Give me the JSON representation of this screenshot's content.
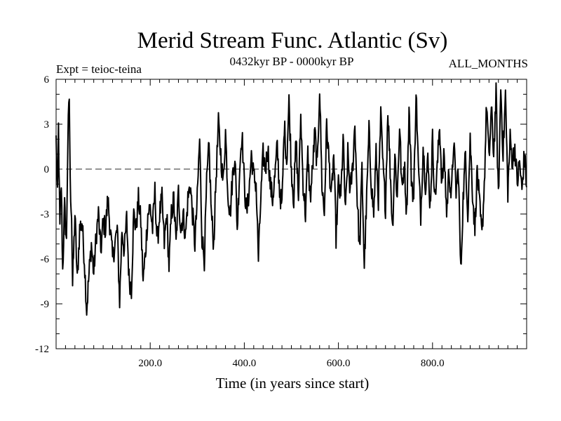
{
  "chart_data": {
    "type": "line",
    "title": "Merid Stream Func. Atlantic (Sv)",
    "subtitle_left": "Expt = teioc-teina",
    "subtitle_center": "0432kyr BP - 0000kyr BP",
    "subtitle_right": "ALL_MONTHS",
    "xlabel": "Time (in years since start)",
    "ylabel": "",
    "xlim": [
      0,
      1000
    ],
    "ylim": [
      -12,
      6
    ],
    "x_ticks": [
      200,
      400,
      600,
      800
    ],
    "x_tick_labels": [
      "200.0",
      "400.0",
      "600.0",
      "800.0"
    ],
    "y_ticks": [
      -12,
      -9,
      -6,
      -3,
      0,
      3,
      6
    ],
    "y_tick_labels": [
      "-12",
      "-9",
      "-6",
      "-3",
      "0",
      "3",
      "6"
    ],
    "zero_line": true,
    "grid": false,
    "x_start": 1,
    "x_step": 1,
    "anchors": [
      [
        0,
        2
      ],
      [
        3,
        -2
      ],
      [
        5,
        2.8
      ],
      [
        8,
        -4
      ],
      [
        11,
        -1
      ],
      [
        14,
        -6.8
      ],
      [
        18,
        -2.5
      ],
      [
        22,
        -5
      ],
      [
        25,
        2
      ],
      [
        28,
        4.8
      ],
      [
        30,
        -1
      ],
      [
        33,
        -3
      ],
      [
        35,
        -7.8
      ],
      [
        40,
        -3
      ],
      [
        45,
        -7.5
      ],
      [
        50,
        -4
      ],
      [
        55,
        -3.5
      ],
      [
        60,
        -6
      ],
      [
        65,
        -9.4
      ],
      [
        70,
        -7
      ],
      [
        75,
        -5
      ],
      [
        80,
        -7
      ],
      [
        85,
        -4.5
      ],
      [
        90,
        -3
      ],
      [
        95,
        -5.5
      ],
      [
        100,
        -3.5
      ],
      [
        105,
        -4
      ],
      [
        110,
        -2
      ],
      [
        115,
        -4
      ],
      [
        120,
        -6
      ],
      [
        125,
        -5
      ],
      [
        130,
        -4
      ],
      [
        135,
        -8.8
      ],
      [
        140,
        -4
      ],
      [
        145,
        -5.5
      ],
      [
        150,
        -3.3
      ],
      [
        155,
        -7.3
      ],
      [
        160,
        -8
      ],
      [
        165,
        -3
      ],
      [
        170,
        -4
      ],
      [
        175,
        -2
      ],
      [
        180,
        -3.5
      ],
      [
        185,
        -7.5
      ],
      [
        190,
        -5.5
      ],
      [
        195,
        -3
      ],
      [
        200,
        -2.5
      ],
      [
        205,
        -4
      ],
      [
        210,
        -1.5
      ],
      [
        215,
        -5
      ],
      [
        220,
        -3
      ],
      [
        225,
        -2
      ],
      [
        230,
        -5
      ],
      [
        235,
        -3
      ],
      [
        240,
        -6.5
      ],
      [
        245,
        -3
      ],
      [
        250,
        -2
      ],
      [
        255,
        -5
      ],
      [
        260,
        -1.5
      ],
      [
        265,
        -4
      ],
      [
        270,
        -3
      ],
      [
        275,
        -4.5
      ],
      [
        280,
        -2
      ],
      [
        285,
        -1
      ],
      [
        290,
        -3
      ],
      [
        295,
        -5
      ],
      [
        300,
        -2
      ],
      [
        305,
        2
      ],
      [
        310,
        -4.5
      ],
      [
        315,
        -6
      ],
      [
        320,
        -1
      ],
      [
        325,
        1.5
      ],
      [
        330,
        -3
      ],
      [
        335,
        -5
      ],
      [
        340,
        -0.5
      ],
      [
        345,
        3
      ],
      [
        350,
        1
      ],
      [
        355,
        -1
      ],
      [
        360,
        2.5
      ],
      [
        365,
        -1.5
      ],
      [
        370,
        -3
      ],
      [
        375,
        -0.5
      ],
      [
        380,
        1
      ],
      [
        385,
        -4
      ],
      [
        390,
        0
      ],
      [
        395,
        2.5
      ],
      [
        400,
        -1
      ],
      [
        405,
        -3
      ],
      [
        410,
        -1.5
      ],
      [
        415,
        1
      ],
      [
        420,
        -0.5
      ],
      [
        425,
        -1
      ],
      [
        430,
        -6
      ],
      [
        435,
        -2
      ],
      [
        440,
        1
      ],
      [
        445,
        0
      ],
      [
        450,
        1.5
      ],
      [
        455,
        -1
      ],
      [
        460,
        -2
      ],
      [
        465,
        -0.5
      ],
      [
        470,
        1.5
      ],
      [
        475,
        -1.5
      ],
      [
        480,
        -2.5
      ],
      [
        485,
        3
      ],
      [
        490,
        0.5
      ],
      [
        495,
        4.5
      ],
      [
        500,
        0
      ],
      [
        505,
        -2
      ],
      [
        510,
        2
      ],
      [
        515,
        -2
      ],
      [
        520,
        3.5
      ],
      [
        525,
        -1
      ],
      [
        530,
        -3
      ],
      [
        535,
        1
      ],
      [
        540,
        -2
      ],
      [
        545,
        0
      ],
      [
        550,
        2.5
      ],
      [
        555,
        0
      ],
      [
        560,
        5.5
      ],
      [
        565,
        -1
      ],
      [
        570,
        -3
      ],
      [
        575,
        3
      ],
      [
        580,
        0.5
      ],
      [
        585,
        -2
      ],
      [
        590,
        1
      ],
      [
        595,
        -4.5
      ],
      [
        600,
        -1
      ],
      [
        605,
        -2
      ],
      [
        610,
        2
      ],
      [
        615,
        -3
      ],
      [
        620,
        1
      ],
      [
        625,
        -1.5
      ],
      [
        630,
        0
      ],
      [
        635,
        3
      ],
      [
        640,
        -2
      ],
      [
        645,
        -5.5
      ],
      [
        650,
        0
      ],
      [
        655,
        -6.5
      ],
      [
        660,
        -2
      ],
      [
        665,
        2.5
      ],
      [
        670,
        -1
      ],
      [
        675,
        -3
      ],
      [
        680,
        1
      ],
      [
        685,
        -2
      ],
      [
        690,
        3.5
      ],
      [
        695,
        0
      ],
      [
        700,
        -2.5
      ],
      [
        705,
        4
      ],
      [
        710,
        0
      ],
      [
        715,
        -4
      ],
      [
        720,
        1
      ],
      [
        725,
        -2
      ],
      [
        730,
        3
      ],
      [
        735,
        -1.5
      ],
      [
        740,
        0.5
      ],
      [
        745,
        -3
      ],
      [
        750,
        4
      ],
      [
        755,
        -0.5
      ],
      [
        760,
        -2
      ],
      [
        765,
        5.2
      ],
      [
        770,
        0
      ],
      [
        775,
        -3
      ],
      [
        780,
        1.5
      ],
      [
        785,
        -1
      ],
      [
        790,
        0.5
      ],
      [
        795,
        -2.5
      ],
      [
        800,
        2
      ],
      [
        805,
        -2
      ],
      [
        810,
        0
      ],
      [
        815,
        3
      ],
      [
        820,
        -1
      ],
      [
        825,
        1
      ],
      [
        830,
        -3
      ],
      [
        835,
        0
      ],
      [
        840,
        -2
      ],
      [
        845,
        2
      ],
      [
        850,
        -1.5
      ],
      [
        855,
        0
      ],
      [
        860,
        -7
      ],
      [
        865,
        -2
      ],
      [
        870,
        1
      ],
      [
        875,
        -3
      ],
      [
        880,
        2
      ],
      [
        885,
        -1.5
      ],
      [
        890,
        -4
      ],
      [
        895,
        0
      ],
      [
        900,
        -2.5
      ],
      [
        905,
        -4.5
      ],
      [
        910,
        -1
      ],
      [
        915,
        4.5
      ],
      [
        920,
        0.5
      ],
      [
        925,
        4
      ],
      [
        930,
        1
      ],
      [
        935,
        5
      ],
      [
        940,
        -2
      ],
      [
        945,
        5.5
      ],
      [
        950,
        1
      ],
      [
        955,
        5
      ],
      [
        960,
        -1.5
      ],
      [
        965,
        2
      ],
      [
        970,
        0.5
      ],
      [
        975,
        1.5
      ],
      [
        980,
        -1
      ],
      [
        985,
        0.5
      ],
      [
        990,
        -1.5
      ],
      [
        995,
        1
      ],
      [
        1000,
        -1
      ]
    ]
  }
}
